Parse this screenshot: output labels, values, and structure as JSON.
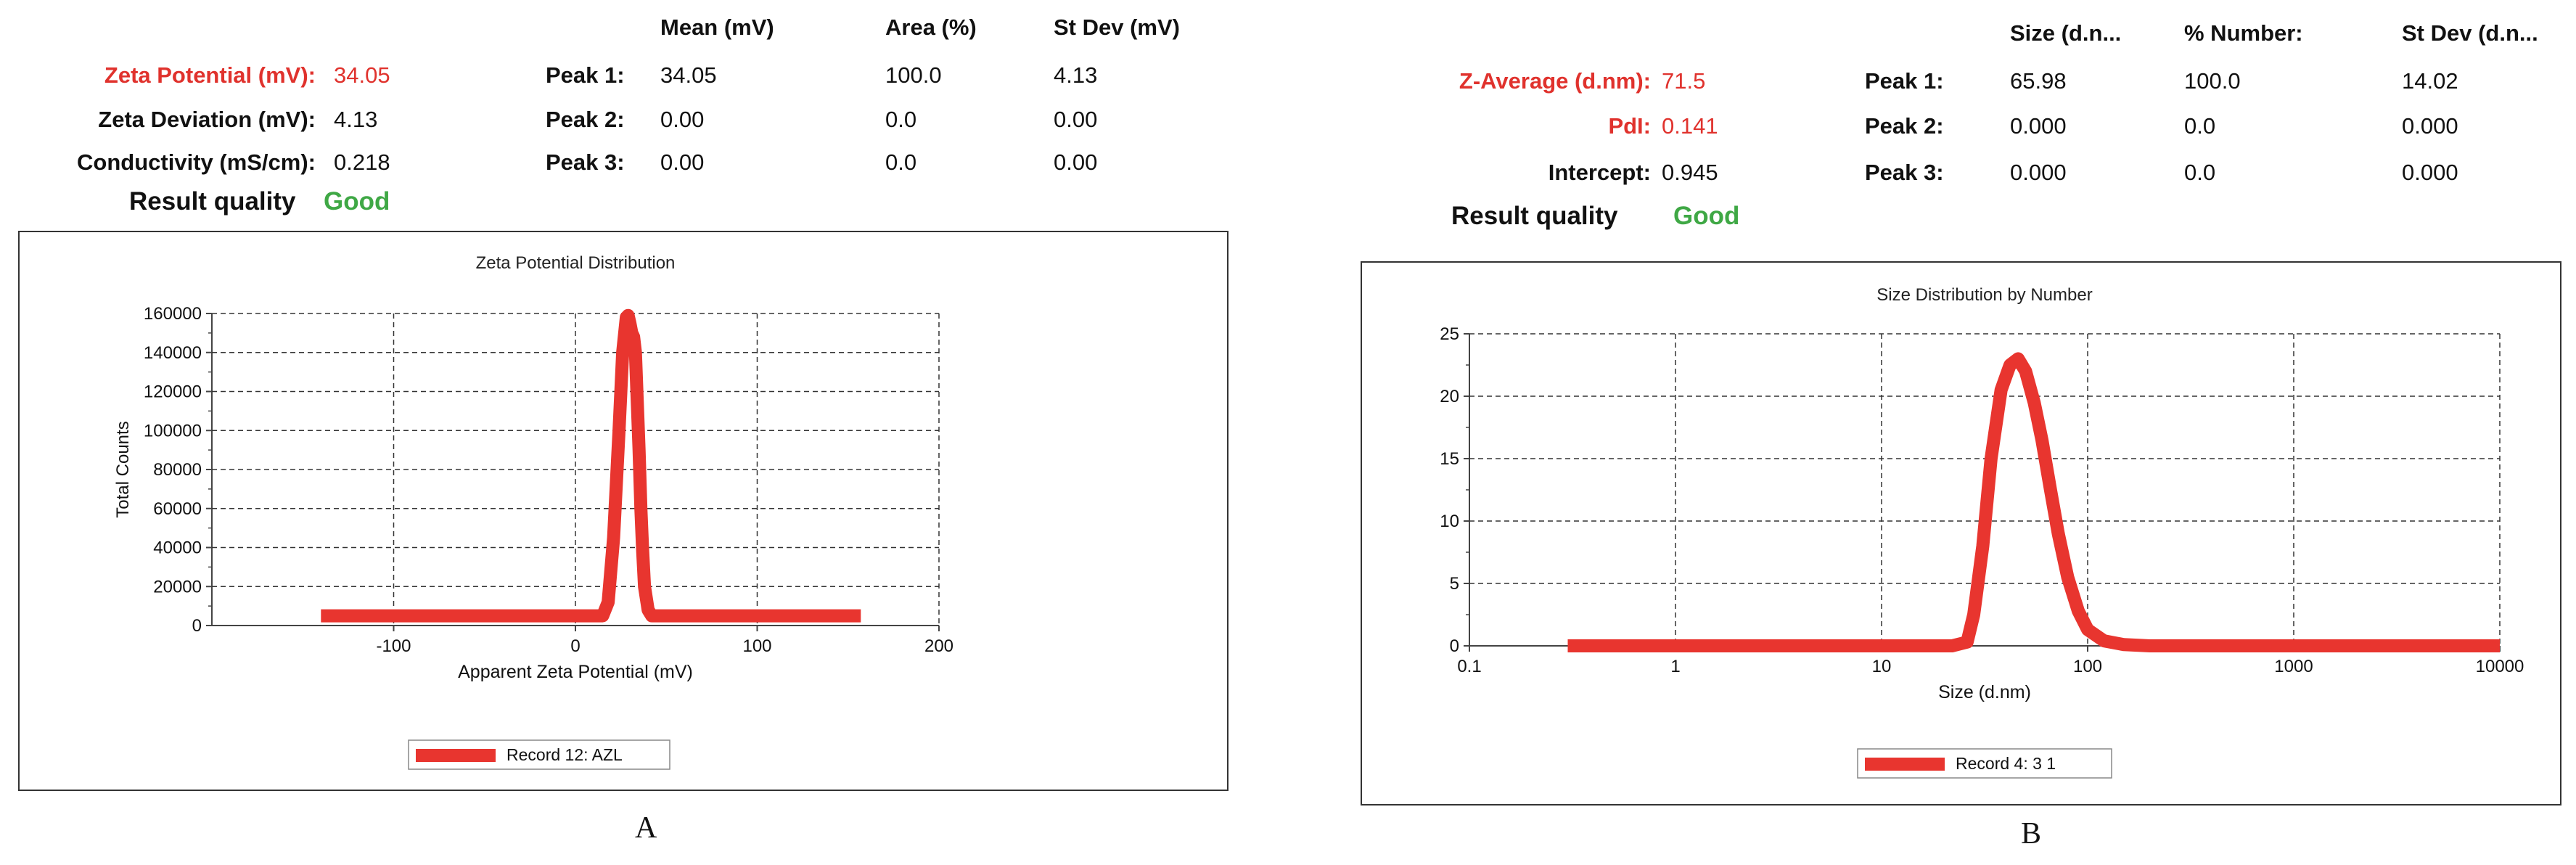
{
  "panels": [
    {
      "caption": "A",
      "headers": [
        "Mean (mV)",
        "Area (%)",
        "St Dev (mV)"
      ],
      "info": [
        {
          "label": "Zeta Potential (mV):",
          "value": "34.05",
          "red": true
        },
        {
          "label": "Zeta Deviation (mV):",
          "value": "4.13",
          "red": false
        },
        {
          "label": "Conductivity (mS/cm):",
          "value": "0.218",
          "red": false
        }
      ],
      "peaks": [
        {
          "label": "Peak 1:",
          "c1": "34.05",
          "c2": "100.0",
          "c3": "4.13"
        },
        {
          "label": "Peak 2:",
          "c1": "0.00",
          "c2": "0.0",
          "c3": "0.00"
        },
        {
          "label": "Peak 3:",
          "c1": "0.00",
          "c2": "0.0",
          "c3": "0.00"
        }
      ],
      "quality_label": "Result quality",
      "quality_value": "Good"
    },
    {
      "caption": "B",
      "headers": [
        "Size (d.n...",
        "% Number:",
        "St Dev (d.n..."
      ],
      "info": [
        {
          "label": "Z-Average (d.nm):",
          "value": "71.5",
          "red": true
        },
        {
          "label": "PdI:",
          "value": "0.141",
          "red": true
        },
        {
          "label": "Intercept:",
          "value": "0.945",
          "red": false
        }
      ],
      "peaks": [
        {
          "label": "Peak 1:",
          "c1": "65.98",
          "c2": "100.0",
          "c3": "14.02"
        },
        {
          "label": "Peak 2:",
          "c1": "0.000",
          "c2": "0.0",
          "c3": "0.000"
        },
        {
          "label": "Peak 3:",
          "c1": "0.000",
          "c2": "0.0",
          "c3": "0.000"
        }
      ],
      "quality_label": "Result quality",
      "quality_value": "Good"
    }
  ],
  "chart_data": [
    {
      "type": "line",
      "title": "Zeta Potential Distribution",
      "xlabel": "Apparent Zeta Potential (mV)",
      "ylabel": "Total Counts",
      "xlim": [
        -200,
        200
      ],
      "ylim": [
        0,
        160000
      ],
      "x_scale": "linear",
      "xticks": [
        -100,
        0,
        100,
        200
      ],
      "xtick_labels": [
        "-100",
        "0",
        "100",
        "200"
      ],
      "yticks": [
        0,
        20000,
        40000,
        60000,
        80000,
        100000,
        120000,
        140000,
        160000
      ],
      "ytick_labels": [
        "0",
        "20000",
        "40000",
        "60000",
        "80000",
        "100000",
        "120000",
        "140000",
        "160000"
      ],
      "grid": true,
      "legend_position": "bottom-center",
      "color": "#e8352f",
      "series": [
        {
          "name": "Record 12: AZL",
          "x": [
            -140,
            15,
            18,
            21,
            24,
            26,
            28,
            29,
            30,
            31,
            32,
            33,
            34,
            35,
            36,
            37,
            38,
            40,
            42,
            45,
            48,
            157
          ],
          "y": [
            5000,
            5000,
            12000,
            45000,
            100000,
            140000,
            158000,
            159000,
            155000,
            150000,
            148000,
            140000,
            115000,
            90000,
            60000,
            38000,
            20000,
            8000,
            5000,
            5000,
            5000,
            5000
          ]
        }
      ]
    },
    {
      "type": "line",
      "title": "Size Distribution by Number",
      "xlabel": "Size (d.nm)",
      "ylabel": "",
      "xlim": [
        0.1,
        10000
      ],
      "ylim": [
        0,
        25
      ],
      "x_scale": "log",
      "xticks": [
        0.1,
        1,
        10,
        100,
        1000,
        10000
      ],
      "xtick_labels": [
        "0.1",
        "1",
        "10",
        "100",
        "1000",
        "10000"
      ],
      "yticks": [
        0,
        5,
        10,
        15,
        20,
        25
      ],
      "ytick_labels": [
        "0",
        "5",
        "10",
        "15",
        "20",
        "25"
      ],
      "grid": true,
      "legend_position": "bottom-center",
      "color": "#e8352f",
      "series": [
        {
          "name": "Record 4: 3 1",
          "x": [
            0.3,
            1,
            10,
            22,
            26,
            28,
            31,
            34,
            38,
            42,
            46,
            50,
            55,
            60,
            66,
            72,
            80,
            90,
            100,
            120,
            150,
            200,
            400,
            1000,
            10000
          ],
          "y": [
            0,
            0,
            0,
            0,
            0.3,
            2.5,
            8,
            15,
            20.5,
            22.5,
            23,
            22,
            19.5,
            16.5,
            12.5,
            9,
            5.5,
            2.8,
            1.3,
            0.4,
            0.1,
            0,
            0,
            0,
            0
          ]
        }
      ]
    }
  ]
}
